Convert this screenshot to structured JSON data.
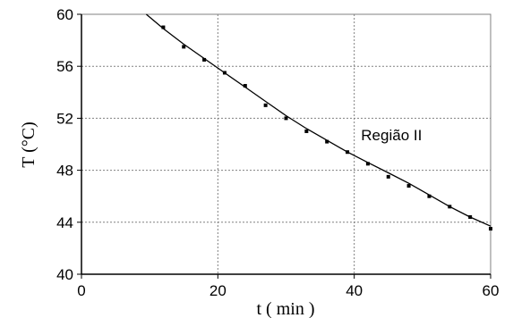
{
  "chart_data": {
    "type": "scatter",
    "xlabel": "t ( min )",
    "ylabel": "T (°C)",
    "xlim": [
      0,
      60
    ],
    "ylim": [
      40,
      60
    ],
    "xticks": [
      "0",
      "20",
      "40",
      "60"
    ],
    "yticks": [
      "40",
      "44",
      "48",
      "52",
      "56",
      "60"
    ],
    "grid": true,
    "annotation": {
      "text": "Região II",
      "x": 41,
      "y": 50.3
    },
    "series": [
      {
        "points": {
          "x": [
            12,
            15,
            18,
            21,
            24,
            27,
            30,
            33,
            36,
            39,
            42,
            45,
            48,
            51,
            54,
            57,
            60
          ],
          "y": [
            59.0,
            57.5,
            56.5,
            55.5,
            54.5,
            53.0,
            52.0,
            51.0,
            50.2,
            49.4,
            48.5,
            47.5,
            46.8,
            46.0,
            45.2,
            44.4,
            43.5
          ]
        },
        "fit": {
          "x": [
            9.5,
            12,
            15,
            18,
            21,
            24,
            27,
            30,
            33,
            36,
            39,
            42,
            45,
            48,
            51,
            54,
            57,
            60
          ],
          "y": [
            60.0,
            58.9,
            57.7,
            56.6,
            55.5,
            54.4,
            53.3,
            52.2,
            51.2,
            50.3,
            49.4,
            48.6,
            47.8,
            47.0,
            46.1,
            45.2,
            44.4,
            43.7
          ]
        }
      }
    ]
  }
}
